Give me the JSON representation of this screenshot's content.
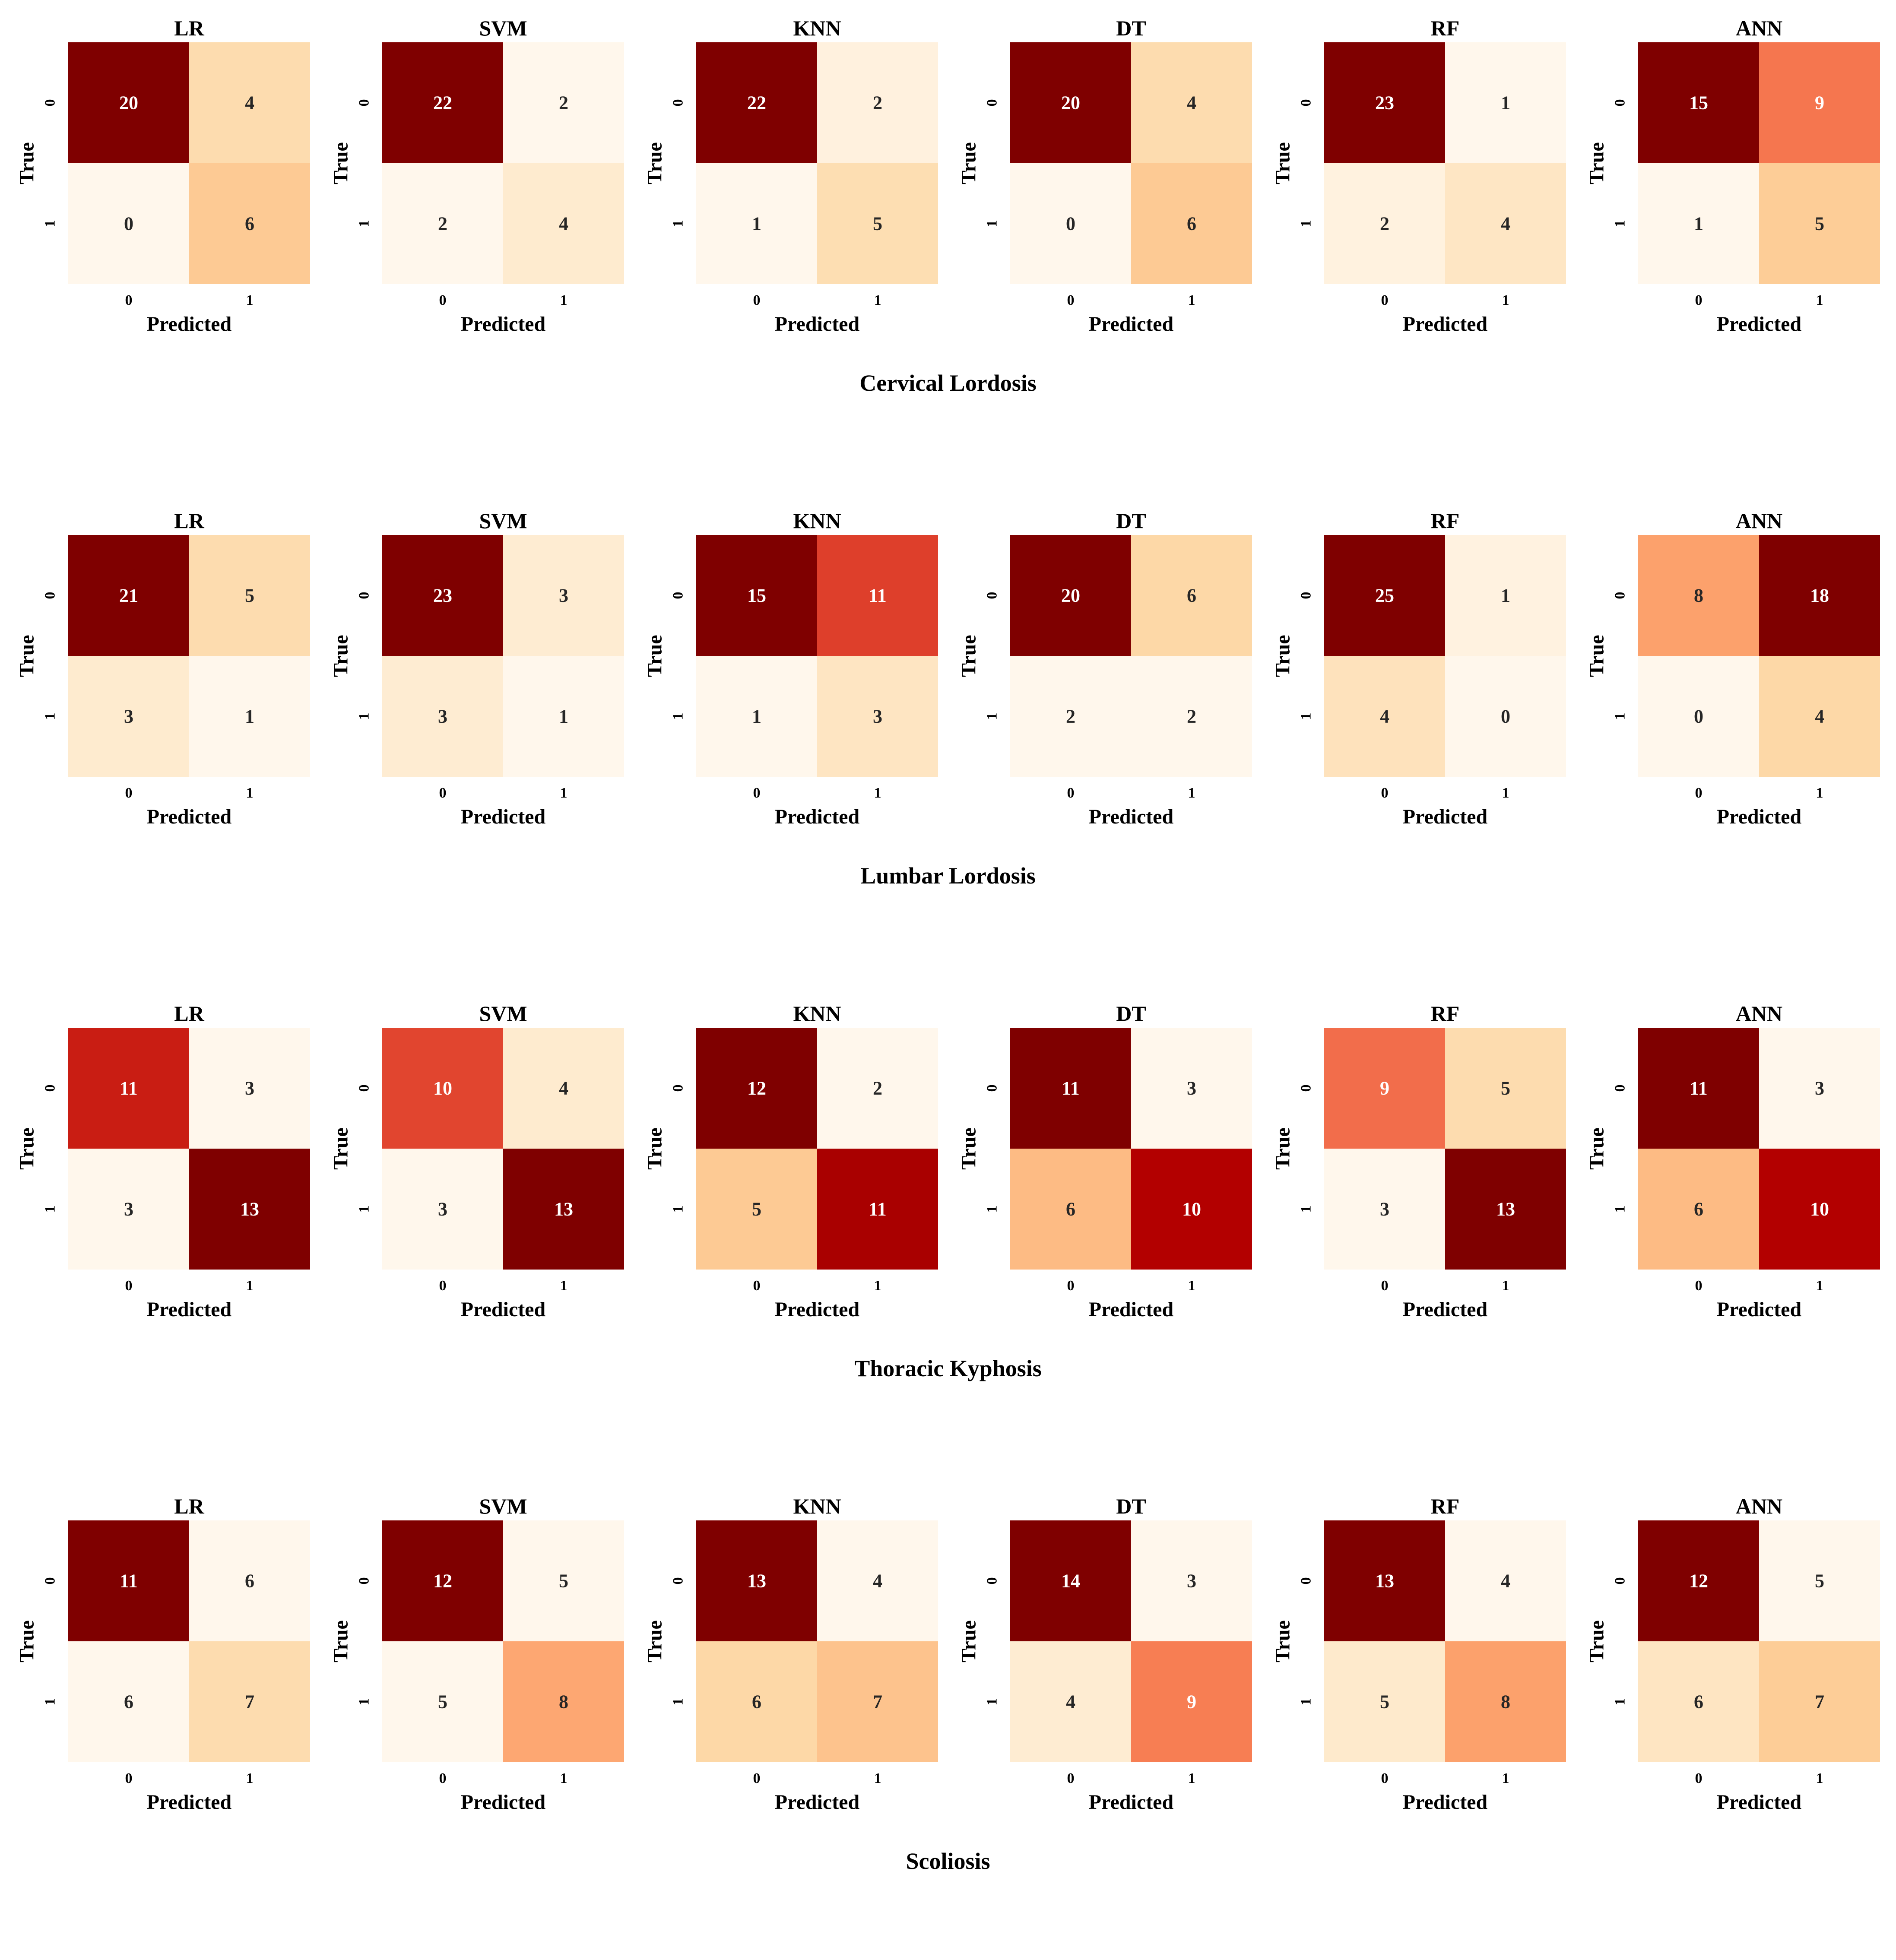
{
  "common": {
    "x_label": "Predicted",
    "y_label": "True",
    "tick_labels": [
      "0",
      "1"
    ]
  },
  "chart_data": [
    {
      "type": "heatmap",
      "title": "Cervical Lordosis",
      "panels": [
        {
          "model": "LR",
          "matrix": [
            [
              20,
              4
            ],
            [
              0,
              6
            ]
          ]
        },
        {
          "model": "SVM",
          "matrix": [
            [
              22,
              2
            ],
            [
              2,
              4
            ]
          ]
        },
        {
          "model": "KNN",
          "matrix": [
            [
              22,
              2
            ],
            [
              1,
              5
            ]
          ]
        },
        {
          "model": "DT",
          "matrix": [
            [
              20,
              4
            ],
            [
              0,
              6
            ]
          ]
        },
        {
          "model": "RF",
          "matrix": [
            [
              23,
              1
            ],
            [
              2,
              4
            ]
          ]
        },
        {
          "model": "ANN",
          "matrix": [
            [
              15,
              9
            ],
            [
              1,
              5
            ]
          ]
        }
      ]
    },
    {
      "type": "heatmap",
      "title": "Lumbar Lordosis",
      "panels": [
        {
          "model": "LR",
          "matrix": [
            [
              21,
              5
            ],
            [
              3,
              1
            ]
          ]
        },
        {
          "model": "SVM",
          "matrix": [
            [
              23,
              3
            ],
            [
              3,
              1
            ]
          ]
        },
        {
          "model": "KNN",
          "matrix": [
            [
              15,
              11
            ],
            [
              1,
              3
            ]
          ]
        },
        {
          "model": "DT",
          "matrix": [
            [
              20,
              6
            ],
            [
              2,
              2
            ]
          ]
        },
        {
          "model": "RF",
          "matrix": [
            [
              25,
              1
            ],
            [
              4,
              0
            ]
          ]
        },
        {
          "model": "ANN",
          "matrix": [
            [
              8,
              18
            ],
            [
              0,
              4
            ]
          ]
        }
      ]
    },
    {
      "type": "heatmap",
      "title": "Thoracic Kyphosis",
      "panels": [
        {
          "model": "LR",
          "matrix": [
            [
              11,
              3
            ],
            [
              3,
              13
            ]
          ]
        },
        {
          "model": "SVM",
          "matrix": [
            [
              10,
              4
            ],
            [
              3,
              13
            ]
          ]
        },
        {
          "model": "KNN",
          "matrix": [
            [
              12,
              2
            ],
            [
              5,
              11
            ]
          ]
        },
        {
          "model": "DT",
          "matrix": [
            [
              11,
              3
            ],
            [
              6,
              10
            ]
          ]
        },
        {
          "model": "RF",
          "matrix": [
            [
              9,
              5
            ],
            [
              3,
              13
            ]
          ]
        },
        {
          "model": "ANN",
          "matrix": [
            [
              11,
              3
            ],
            [
              6,
              10
            ]
          ]
        }
      ]
    },
    {
      "type": "heatmap",
      "title": "Scoliosis",
      "panels": [
        {
          "model": "LR",
          "matrix": [
            [
              11,
              6
            ],
            [
              6,
              7
            ]
          ]
        },
        {
          "model": "SVM",
          "matrix": [
            [
              12,
              5
            ],
            [
              5,
              8
            ]
          ]
        },
        {
          "model": "KNN",
          "matrix": [
            [
              13,
              4
            ],
            [
              6,
              7
            ]
          ]
        },
        {
          "model": "DT",
          "matrix": [
            [
              14,
              3
            ],
            [
              4,
              9
            ]
          ]
        },
        {
          "model": "RF",
          "matrix": [
            [
              13,
              4
            ],
            [
              5,
              8
            ]
          ]
        },
        {
          "model": "ANN",
          "matrix": [
            [
              12,
              5
            ],
            [
              6,
              7
            ]
          ]
        }
      ]
    }
  ],
  "colors": {
    "colormap": "OrRd",
    "low": "#fff7ec",
    "high": "#7f0000",
    "text_dark": "#262626",
    "text_light": "#ffffff"
  }
}
